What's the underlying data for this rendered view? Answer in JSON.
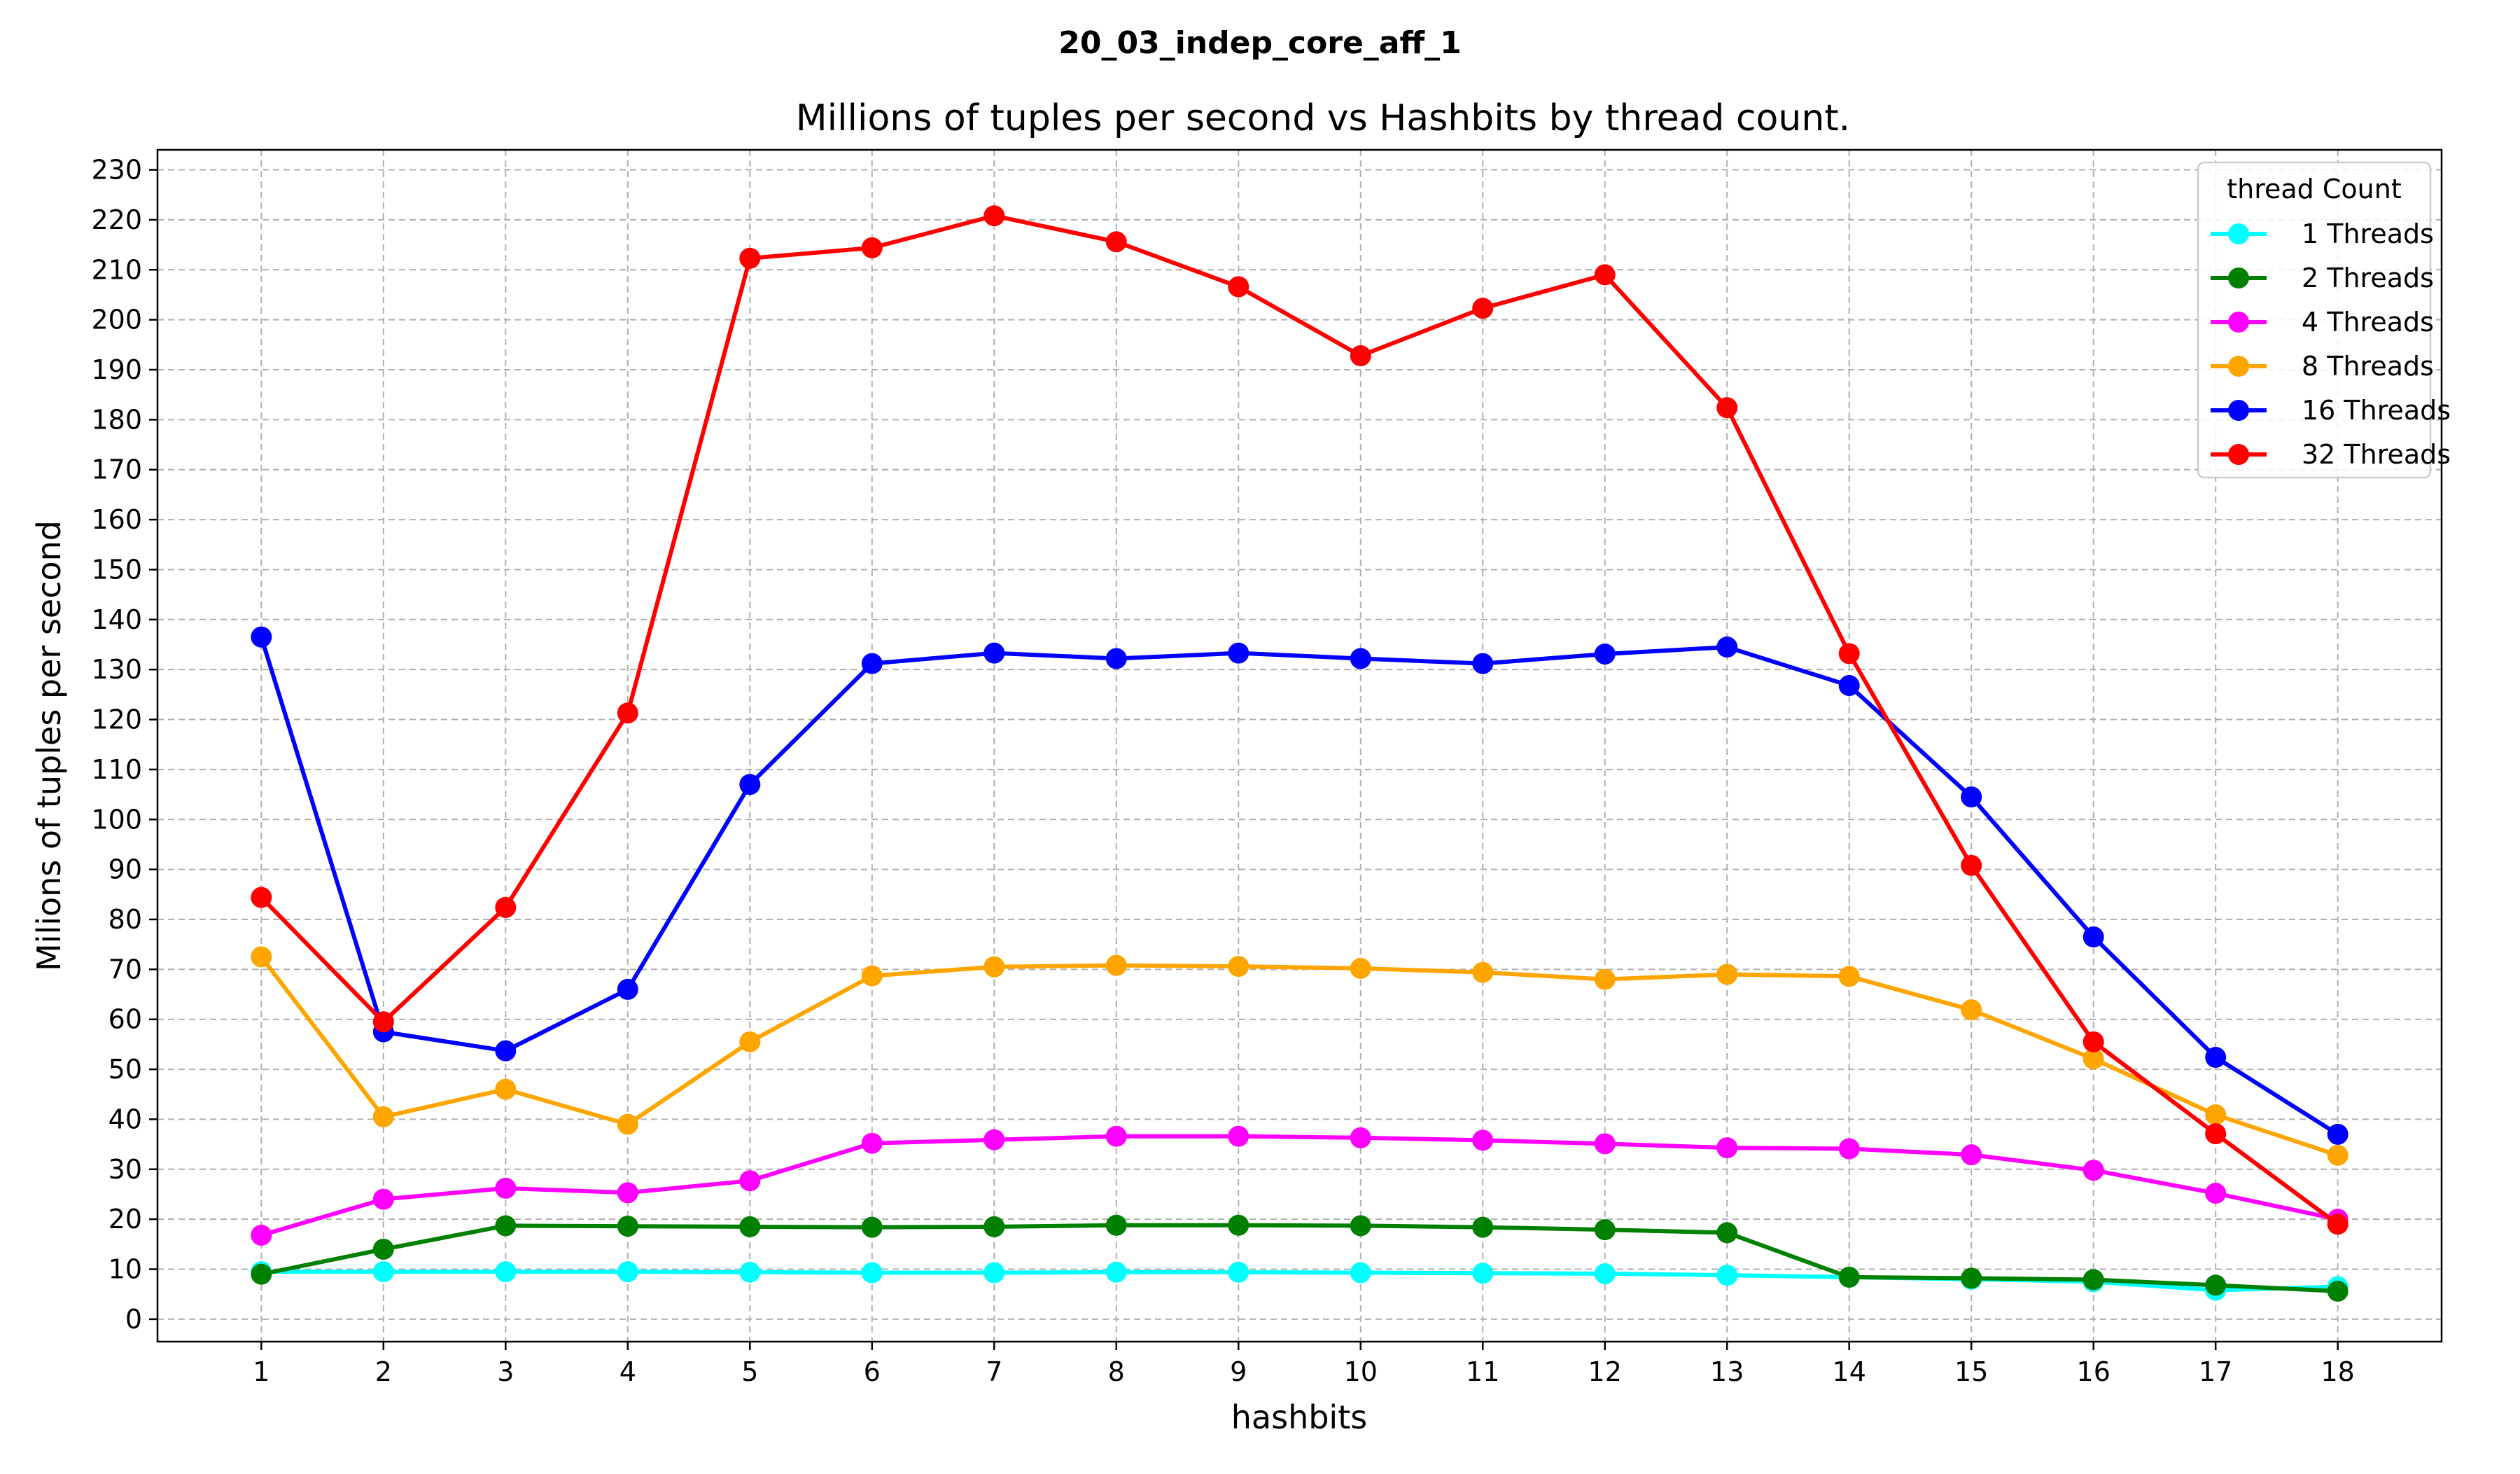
{
  "chart_data": {
    "type": "line",
    "suptitle": "20_03_indep_core_aff_1",
    "title": "Millions of tuples per second vs Hashbits by thread count.",
    "xlabel": "hashbits",
    "ylabel": "Milions of tuples per second",
    "x": [
      1,
      2,
      3,
      4,
      5,
      6,
      7,
      8,
      9,
      10,
      11,
      12,
      13,
      14,
      15,
      16,
      17,
      18
    ],
    "xlim": [
      0.15,
      18.85
    ],
    "ylim": [
      -4.5,
      234
    ],
    "yticks": [
      0,
      10,
      20,
      30,
      40,
      50,
      60,
      70,
      80,
      90,
      100,
      110,
      120,
      130,
      140,
      150,
      160,
      170,
      180,
      190,
      200,
      210,
      220,
      230
    ],
    "grid": true,
    "legend": {
      "title": "thread Count",
      "placement": "top-right"
    },
    "series": [
      {
        "name": "1 Threads",
        "color": "#00ffff",
        "values": [
          9.5,
          9.5,
          9.5,
          9.5,
          9.4,
          9.3,
          9.3,
          9.4,
          9.4,
          9.3,
          9.2,
          9.1,
          8.8,
          8.4,
          8.0,
          7.5,
          5.8,
          6.5
        ]
      },
      {
        "name": "2 Threads",
        "color": "#008000",
        "values": [
          9.0,
          14.0,
          18.7,
          18.6,
          18.5,
          18.4,
          18.5,
          18.8,
          18.8,
          18.7,
          18.4,
          17.9,
          17.3,
          8.4,
          8.2,
          7.9,
          6.8,
          5.6
        ]
      },
      {
        "name": "4 Threads",
        "color": "#ff00ff",
        "values": [
          16.8,
          24.0,
          26.2,
          25.3,
          27.7,
          35.2,
          35.9,
          36.6,
          36.6,
          36.3,
          35.8,
          35.1,
          34.3,
          34.1,
          32.9,
          29.8,
          25.2,
          20.0
        ]
      },
      {
        "name": "8 Threads",
        "color": "#ffa500",
        "values": [
          72.5,
          40.5,
          46.0,
          39.0,
          55.5,
          68.7,
          70.5,
          70.8,
          70.6,
          70.2,
          69.4,
          68.0,
          69.0,
          68.6,
          61.9,
          52.1,
          40.9,
          32.8
        ]
      },
      {
        "name": "16 Threads",
        "color": "#0000ff",
        "values": [
          136.5,
          57.5,
          53.7,
          66.0,
          107.0,
          131.2,
          133.3,
          132.2,
          133.3,
          132.2,
          131.2,
          133.1,
          134.5,
          126.8,
          104.5,
          76.5,
          52.4,
          37.0
        ]
      },
      {
        "name": "32 Threads",
        "color": "#ff0000",
        "values": [
          84.4,
          59.5,
          82.4,
          121.3,
          212.3,
          214.4,
          220.8,
          215.6,
          206.6,
          192.8,
          202.3,
          209.0,
          182.4,
          133.2,
          90.8,
          55.5,
          37.1,
          19.0
        ]
      }
    ]
  }
}
